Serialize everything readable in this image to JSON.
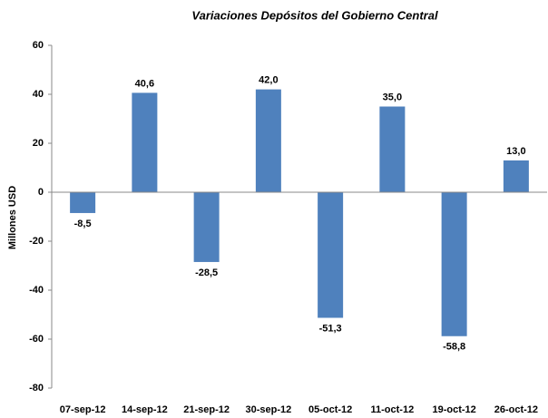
{
  "chart_data": {
    "type": "bar",
    "title": "Variaciones Depósitos del Gobierno Central",
    "y_label": "Millones USD",
    "categories": [
      "07-sep-12",
      "14-sep-12",
      "21-sep-12",
      "30-sep-12",
      "05-oct-12",
      "11-oct-12",
      "19-oct-12",
      "26-oct-12"
    ],
    "values": [
      -8.5,
      40.6,
      -28.5,
      42.0,
      -51.3,
      35.0,
      -58.8,
      13.0
    ],
    "value_labels": [
      "-8,5",
      "40,6",
      "-28,5",
      "42,0",
      "-51,3",
      "35,0",
      "-58,8",
      "13,0"
    ],
    "color": "#4f81bd",
    "ylim": [
      -80,
      60
    ],
    "yticks": [
      -80,
      -60,
      -40,
      -20,
      0,
      20,
      40,
      60
    ],
    "grid": false
  }
}
